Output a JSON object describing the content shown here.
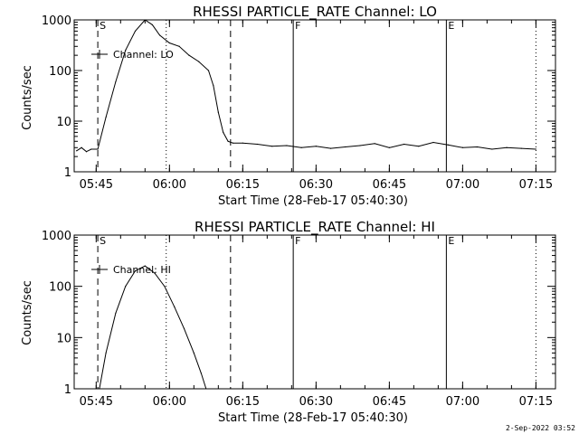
{
  "chart_data": [
    {
      "type": "line",
      "title": "RHESSI PARTICLE_RATE Channel: LO",
      "xlabel": "Start Time (28-Feb-17 05:40:30)",
      "ylabel": "Counts/sec",
      "y_scale": "log",
      "ylim": [
        1,
        1000
      ],
      "xlim": [
        "05:40:30",
        "07:19:00"
      ],
      "y_ticks": [
        1,
        10,
        100,
        1000
      ],
      "y_tick_labels": [
        "1",
        "10",
        "100",
        "1000"
      ],
      "x_tick_labels": [
        "05:45",
        "06:00",
        "06:15",
        "06:30",
        "06:45",
        "07:00",
        "07:15"
      ],
      "x_ticks": [
        "05:45",
        "06:00",
        "06:15",
        "06:30",
        "06:45",
        "07:00",
        "07:15"
      ],
      "legend": {
        "label": "Channel: LO",
        "position": "top-left"
      },
      "markers": [
        {
          "label": "S",
          "time": "05:45:20",
          "style": "dashed"
        },
        {
          "label": "",
          "time": "05:59:20",
          "style": "dotted"
        },
        {
          "label": "",
          "time": "06:12:30",
          "style": "dashed"
        },
        {
          "label": "F",
          "time": "06:25:20",
          "style": "solid"
        },
        {
          "label": "E",
          "time": "06:56:40",
          "style": "solid"
        },
        {
          "label": "",
          "time": "07:15:00",
          "style": "dotted"
        }
      ],
      "series": [
        {
          "name": "Channel: LO",
          "x": [
            "05:41:00",
            "05:42:00",
            "05:43:00",
            "05:44:00",
            "05:45:20",
            "05:47:00",
            "05:49:00",
            "05:51:00",
            "05:53:00",
            "05:55:00",
            "05:56:30",
            "05:58:00",
            "06:00:00",
            "06:02:00",
            "06:04:00",
            "06:06:00",
            "06:08:00",
            "06:09:00",
            "06:10:00",
            "06:11:00",
            "06:12:00",
            "06:13:00",
            "06:15:00",
            "06:18:00",
            "06:21:00",
            "06:24:00",
            "06:27:00",
            "06:30:00",
            "06:33:00",
            "06:36:00",
            "06:39:00",
            "06:42:00",
            "06:45:00",
            "06:48:00",
            "06:51:00",
            "06:54:00",
            "06:57:00",
            "07:00:00",
            "07:03:00",
            "07:06:00",
            "07:09:00",
            "07:12:00",
            "07:15:00"
          ],
          "y": [
            2.6,
            3,
            2.5,
            2.8,
            2.8,
            12,
            60,
            250,
            600,
            1000,
            800,
            500,
            350,
            300,
            200,
            150,
            100,
            50,
            15,
            6,
            4,
            3.7,
            3.7,
            3.5,
            3.2,
            3.3,
            3,
            3.2,
            2.9,
            3.1,
            3.3,
            3.6,
            3,
            3.5,
            3.2,
            3.8,
            3.4,
            3,
            3.1,
            2.8,
            3,
            2.9,
            2.8
          ]
        }
      ]
    },
    {
      "type": "line",
      "title": "RHESSI PARTICLE_RATE Channel: HI",
      "xlabel": "Start Time (28-Feb-17 05:40:30)",
      "ylabel": "Counts/sec",
      "y_scale": "log",
      "ylim": [
        1,
        1000
      ],
      "xlim": [
        "05:40:30",
        "07:19:00"
      ],
      "y_ticks": [
        1,
        10,
        100,
        1000
      ],
      "y_tick_labels": [
        "1",
        "10",
        "100",
        "1000"
      ],
      "x_tick_labels": [
        "05:45",
        "06:00",
        "06:15",
        "06:30",
        "06:45",
        "07:00",
        "07:15"
      ],
      "x_ticks": [
        "05:45",
        "06:00",
        "06:15",
        "06:30",
        "06:45",
        "07:00",
        "07:15"
      ],
      "legend": {
        "label": "Channel: HI",
        "position": "top-left"
      },
      "markers": [
        {
          "label": "S",
          "time": "05:45:20",
          "style": "dashed"
        },
        {
          "label": "",
          "time": "05:59:20",
          "style": "dotted"
        },
        {
          "label": "",
          "time": "06:12:30",
          "style": "dashed"
        },
        {
          "label": "F",
          "time": "06:25:20",
          "style": "solid"
        },
        {
          "label": "E",
          "time": "06:56:40",
          "style": "solid"
        },
        {
          "label": "",
          "time": "07:15:00",
          "style": "dotted"
        }
      ],
      "series": [
        {
          "name": "Channel: HI",
          "x": [
            "05:45:40",
            "05:47:00",
            "05:49:00",
            "05:51:00",
            "05:53:00",
            "05:55:00",
            "05:57:00",
            "05:59:00",
            "06:01:00",
            "06:03:00",
            "06:05:00",
            "06:06:30",
            "06:07:30"
          ],
          "y": [
            1,
            5,
            30,
            100,
            200,
            250,
            180,
            100,
            40,
            15,
            5,
            2,
            1
          ]
        }
      ]
    }
  ],
  "footer": {
    "date_stamp": "2-Sep-2022 03:52"
  }
}
